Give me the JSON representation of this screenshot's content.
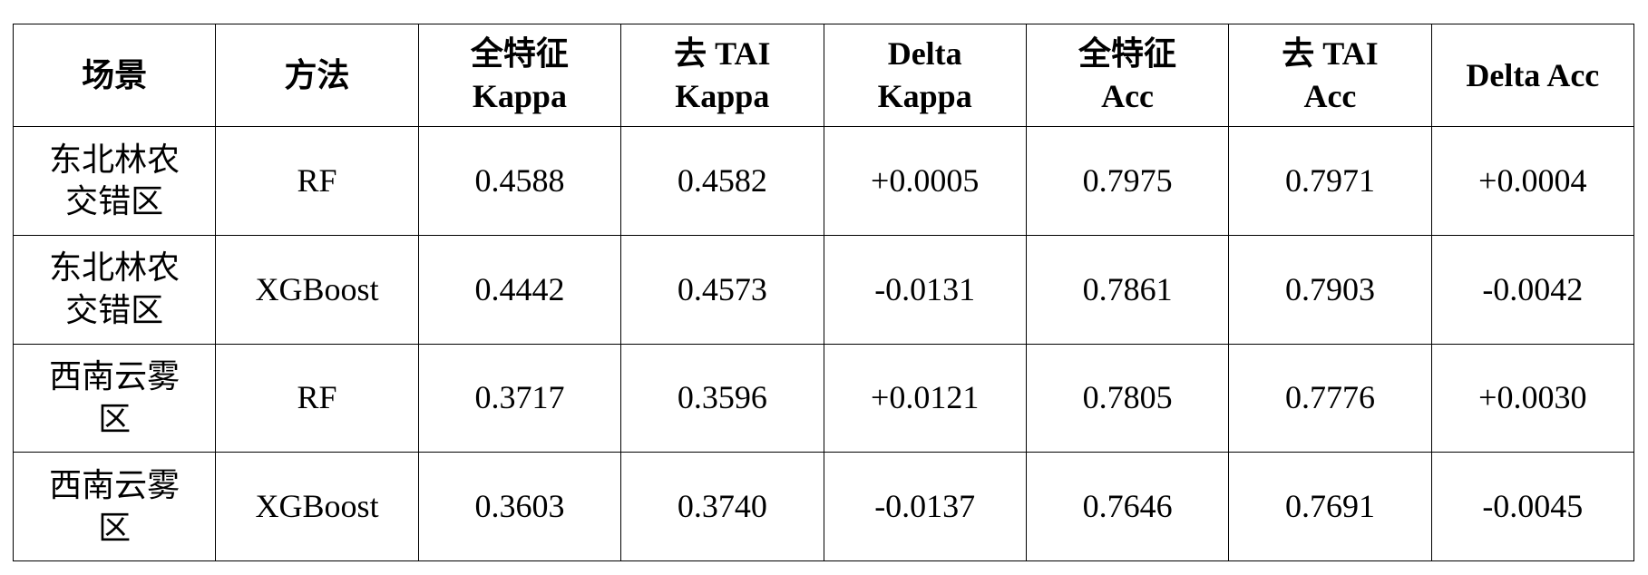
{
  "table": {
    "header": [
      "场景",
      "方法",
      "全特征\nKappa",
      "去 TAI\nKappa",
      "Delta\nKappa",
      "全特征\nAcc",
      "去 TAI\nAcc",
      "Delta Acc"
    ],
    "rows": [
      [
        "东北林农交错区",
        "RF",
        "0.4588",
        "0.4582",
        "+0.0005",
        "0.7975",
        "0.7971",
        "+0.0004"
      ],
      [
        "东北林农交错区",
        "XGBoost",
        "0.4442",
        "0.4573",
        "-0.0131",
        "0.7861",
        "0.7903",
        "-0.0042"
      ],
      [
        "西南云雾区",
        "RF",
        "0.3717",
        "0.3596",
        "+0.0121",
        "0.7805",
        "0.7776",
        "+0.0030"
      ],
      [
        "西南云雾区",
        "XGBoost",
        "0.3603",
        "0.3740",
        "-0.0137",
        "0.7646",
        "0.7691",
        "-0.0045"
      ]
    ]
  }
}
